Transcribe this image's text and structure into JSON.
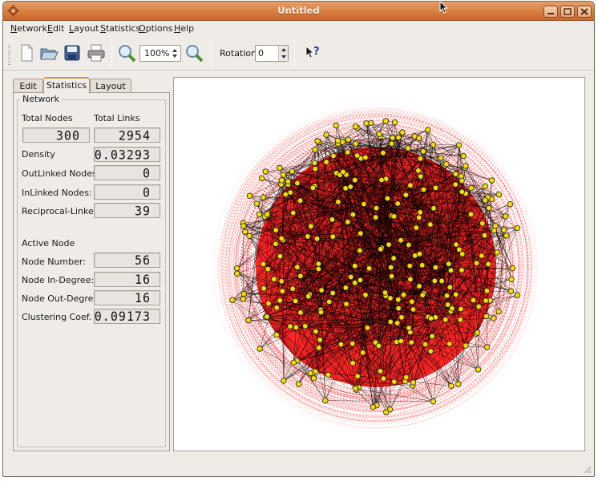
{
  "window": {
    "title": "Untitled"
  },
  "menubar": {
    "items": [
      "Network",
      "Edit",
      "Layout",
      "Statistics",
      "Options",
      "Help"
    ]
  },
  "toolbar": {
    "icons": [
      "new-file-icon",
      "open-folder-icon",
      "save-icon",
      "print-icon",
      "zoom-in-icon",
      "zoom-out-icon",
      "help-pointer-icon"
    ],
    "zoom_value": "100%",
    "rotation_label": "Rotation:",
    "rotation_value": "0"
  },
  "tabs": [
    {
      "label": "Edit",
      "active": false
    },
    {
      "label": "Statistics",
      "active": true
    },
    {
      "label": "Layout",
      "active": false
    }
  ],
  "network_group": {
    "title": "Network",
    "total_nodes_label": "Total Nodes",
    "total_links_label": "Total Links",
    "total_nodes": "300",
    "total_links": "2954",
    "density_label": "Density",
    "density": "0.03293",
    "outlinked_label": "OutLinked Nodes:",
    "outlinked": "0",
    "inlinked_label": "InLinked Nodes:",
    "inlinked": "0",
    "reciprocal_label": "Reciprocal-Linked:",
    "reciprocal": "39"
  },
  "active_node": {
    "title": "Active Node",
    "node_number_label": "Node Number:",
    "node_number": "56",
    "in_degree_label": "Node In-Degree:",
    "in_degree": "16",
    "out_degree_label": "Node Out-Degree:",
    "out_degree": "16",
    "clustering_label": "Clustering Coef.",
    "clustering": "0.09173"
  },
  "graph": {
    "node_count": 300,
    "node_color": "#f2dc00",
    "node_outline": "#222222",
    "edge_color": "#000000",
    "arc_color": "#ff0000"
  },
  "colors": {
    "titlebar": "#d67a3c",
    "tab_accent": "#e3913f"
  }
}
